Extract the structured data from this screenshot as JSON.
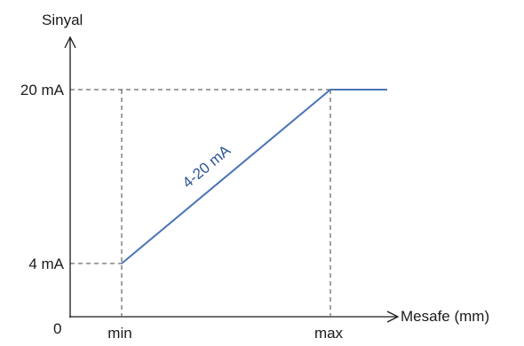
{
  "diagram": {
    "y_axis_label": "Sinyal",
    "x_axis_label": "Mesafe (mm)",
    "origin_label": "0",
    "y_ticks": [
      "20 mA",
      "4 mA"
    ],
    "x_ticks": [
      "min",
      "max"
    ],
    "series_label": "4-20 mA",
    "colors": {
      "series_line": "#4a73b5",
      "series_label": "#2f5597",
      "axes": "#1a1a1a",
      "guides": "#404040"
    }
  }
}
